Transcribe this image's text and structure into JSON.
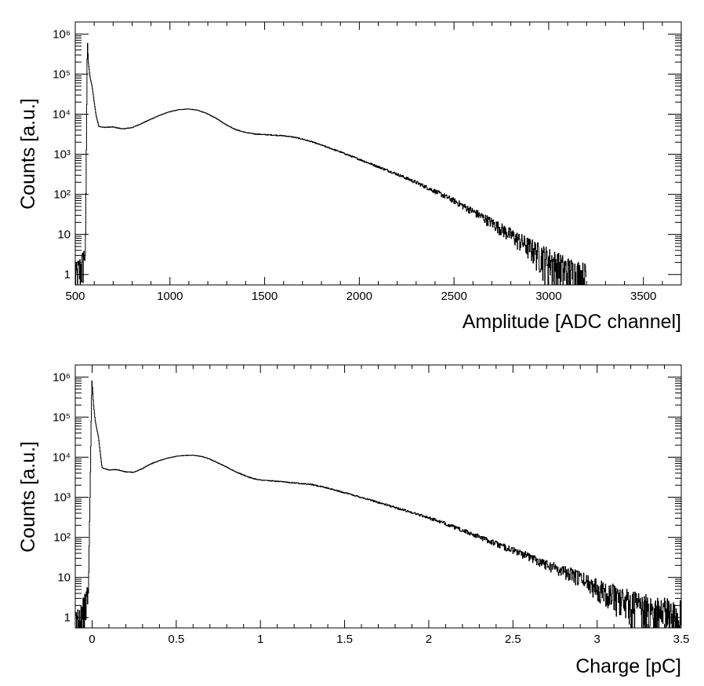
{
  "chart_data": [
    {
      "type": "line",
      "title": "",
      "xlabel": "Amplitude [ADC channel]",
      "ylabel": "Counts [a.u.]",
      "xlim": [
        500,
        3700
      ],
      "ylim": [
        0.55,
        2000000
      ],
      "y_scale": "log",
      "x_ticks": [
        500,
        1000,
        1500,
        2000,
        2500,
        3000,
        3500
      ],
      "x_tick_labels": [
        "500",
        "1000",
        "1500",
        "2000",
        "2500",
        "3000",
        "3500"
      ],
      "y_ticks": [
        1,
        10,
        100,
        1000,
        10000,
        100000,
        1000000
      ],
      "y_tick_labels": [
        "1",
        "10",
        "10²",
        "10³",
        "10⁴",
        "10⁵",
        "10⁶"
      ],
      "grid": false,
      "series": [
        {
          "x": [
            500,
            540,
            555,
            565,
            570,
            580,
            590,
            610,
            625,
            650,
            700,
            750,
            800,
            850,
            900,
            950,
            1000,
            1050,
            1100,
            1150,
            1200,
            1250,
            1300,
            1350,
            1400,
            1450,
            1500,
            1550,
            1600,
            1650,
            1700,
            1750,
            1800,
            1900,
            2000,
            2100,
            2200,
            2300,
            2400,
            2500,
            2600,
            2700,
            2800,
            2900,
            3000,
            3100,
            3200
          ],
          "y": [
            0.7,
            2,
            4,
            800000,
            200000,
            80000,
            50000,
            10000,
            5000,
            4700,
            4800,
            4300,
            4600,
            5800,
            7500,
            9500,
            11500,
            13000,
            13500,
            12500,
            10200,
            7700,
            5400,
            4100,
            3500,
            3200,
            3100,
            3000,
            2900,
            2700,
            2400,
            2050,
            1700,
            1150,
            750,
            490,
            320,
            200,
            120,
            70,
            38,
            20,
            10,
            5,
            2.5,
            1.2,
            0.8
          ]
        }
      ]
    },
    {
      "type": "line",
      "title": "",
      "xlabel": "Charge [pC]",
      "ylabel": "Counts [a.u.]",
      "xlim": [
        -0.1,
        3.5
      ],
      "ylim": [
        0.55,
        2000000
      ],
      "y_scale": "log",
      "x_ticks": [
        0,
        0.5,
        1,
        1.5,
        2,
        2.5,
        3,
        3.5
      ],
      "x_tick_labels": [
        "0",
        "0.5",
        "1",
        "1.5",
        "2",
        "2.5",
        "3",
        "3.5"
      ],
      "y_ticks": [
        1,
        10,
        100,
        1000,
        10000,
        100000,
        1000000
      ],
      "y_tick_labels": [
        "1",
        "10",
        "10²",
        "10³",
        "10⁴",
        "10⁵",
        "10⁶"
      ],
      "grid": false,
      "series": [
        {
          "x": [
            -0.1,
            -0.04,
            -0.02,
            0.0,
            0.01,
            0.02,
            0.04,
            0.06,
            0.1,
            0.15,
            0.2,
            0.25,
            0.3,
            0.35,
            0.4,
            0.45,
            0.5,
            0.55,
            0.6,
            0.65,
            0.7,
            0.75,
            0.8,
            0.85,
            0.9,
            0.95,
            1.0,
            1.1,
            1.2,
            1.3,
            1.4,
            1.5,
            1.6,
            1.7,
            1.8,
            1.9,
            2.0,
            2.1,
            2.2,
            2.3,
            2.4,
            2.5,
            2.6,
            2.7,
            2.8,
            2.9,
            3.0,
            3.1,
            3.2,
            3.3,
            3.4,
            3.5
          ],
          "y": [
            0.7,
            2,
            5,
            900000,
            200000,
            80000,
            30000,
            5500,
            4800,
            4900,
            4300,
            4200,
            5200,
            6800,
            8200,
            9500,
            10500,
            11000,
            11200,
            10500,
            9000,
            7200,
            5700,
            4400,
            3600,
            3000,
            2700,
            2500,
            2300,
            2100,
            1700,
            1300,
            1000,
            750,
            560,
            420,
            310,
            220,
            150,
            105,
            70,
            48,
            33,
            22,
            15,
            10,
            6,
            4,
            2.5,
            1.8,
            1.4,
            1.2
          ]
        }
      ]
    }
  ]
}
